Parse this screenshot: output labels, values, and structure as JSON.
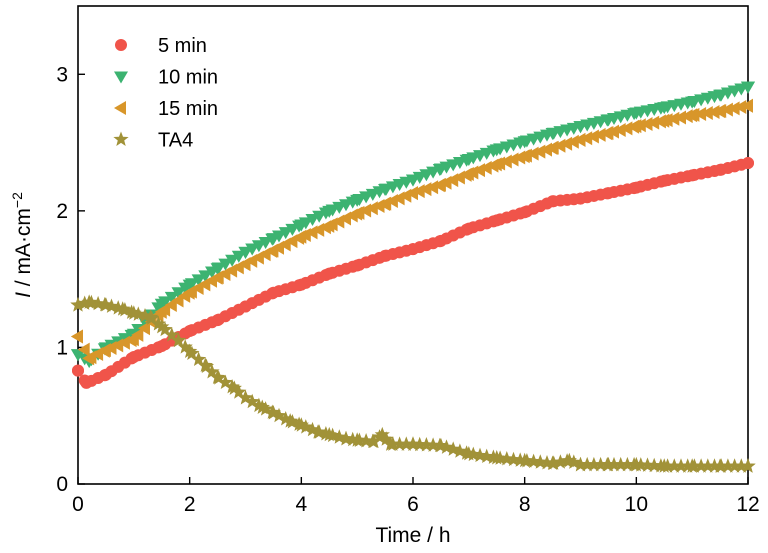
{
  "chart_data": {
    "type": "scatter",
    "xlabel": "Time / h",
    "ylabel_italic": "I",
    "ylabel_rest": " / mA·cm",
    "ylabel_sup": "−2",
    "xlim": [
      0,
      12
    ],
    "ylim": [
      0,
      3.5
    ],
    "xticks": [
      0,
      2,
      4,
      6,
      8,
      10,
      12
    ],
    "yticks": [
      0,
      1,
      2,
      3
    ],
    "grid": false,
    "legend_position": "top-left",
    "series": [
      {
        "name": "5 min",
        "marker": "circle",
        "color": "#f0544a",
        "x": [
          0,
          0.15,
          0.5,
          1,
          1.5,
          2,
          2.5,
          3,
          3.5,
          4,
          4.5,
          5,
          5.5,
          6,
          6.5,
          7,
          7.5,
          8,
          8.5,
          9,
          9.5,
          10,
          10.5,
          11,
          11.5,
          12
        ],
        "y": [
          0.83,
          0.74,
          0.8,
          0.93,
          1.01,
          1.12,
          1.2,
          1.3,
          1.4,
          1.46,
          1.54,
          1.6,
          1.67,
          1.72,
          1.78,
          1.87,
          1.93,
          1.99,
          2.07,
          2.09,
          2.13,
          2.17,
          2.22,
          2.26,
          2.3,
          2.35
        ]
      },
      {
        "name": "10 min",
        "marker": "triangle-down",
        "color": "#3cb371",
        "x": [
          0,
          0.2,
          0.5,
          1,
          1.5,
          2,
          2.5,
          3,
          3.5,
          4,
          4.5,
          5,
          5.5,
          6,
          6.5,
          7,
          7.5,
          8,
          8.5,
          9,
          9.5,
          10,
          10.5,
          11,
          11.5,
          12
        ],
        "y": [
          0.95,
          0.9,
          1.0,
          1.1,
          1.32,
          1.46,
          1.58,
          1.7,
          1.8,
          1.9,
          2.0,
          2.08,
          2.16,
          2.23,
          2.31,
          2.38,
          2.45,
          2.51,
          2.57,
          2.62,
          2.67,
          2.72,
          2.76,
          2.8,
          2.85,
          2.91
        ]
      },
      {
        "name": "15 min",
        "marker": "triangle-left",
        "color": "#d8962a",
        "x": [
          0,
          0.2,
          0.5,
          1,
          1.5,
          2,
          2.5,
          3,
          3.5,
          4,
          4.5,
          5,
          5.5,
          6,
          6.5,
          7,
          7.5,
          8,
          8.5,
          9,
          9.5,
          10,
          10.5,
          11,
          11.5,
          12
        ],
        "y": [
          1.08,
          0.92,
          0.98,
          1.06,
          1.26,
          1.4,
          1.51,
          1.61,
          1.71,
          1.81,
          1.89,
          1.98,
          2.05,
          2.13,
          2.19,
          2.27,
          2.34,
          2.4,
          2.46,
          2.52,
          2.57,
          2.62,
          2.66,
          2.7,
          2.73,
          2.77
        ]
      },
      {
        "name": "TA4",
        "marker": "star",
        "color": "#a19238",
        "x": [
          0,
          0.2,
          0.5,
          0.8,
          1.0,
          1.3,
          1.5,
          1.8,
          2.0,
          2.3,
          2.5,
          2.8,
          3.0,
          3.3,
          3.5,
          3.8,
          4.0,
          4.3,
          4.5,
          4.8,
          5.0,
          5.3,
          5.45,
          5.6,
          6.0,
          6.5,
          7.0,
          7.5,
          8.0,
          8.5,
          8.8,
          9.0,
          9.5,
          10.0,
          10.5,
          11.0,
          11.5,
          12.0
        ],
        "y": [
          1.31,
          1.33,
          1.31,
          1.28,
          1.25,
          1.22,
          1.15,
          1.05,
          0.97,
          0.86,
          0.78,
          0.7,
          0.63,
          0.56,
          0.52,
          0.46,
          0.43,
          0.38,
          0.36,
          0.33,
          0.32,
          0.31,
          0.36,
          0.29,
          0.29,
          0.28,
          0.22,
          0.19,
          0.17,
          0.15,
          0.17,
          0.14,
          0.14,
          0.14,
          0.13,
          0.13,
          0.13,
          0.13
        ]
      }
    ]
  }
}
